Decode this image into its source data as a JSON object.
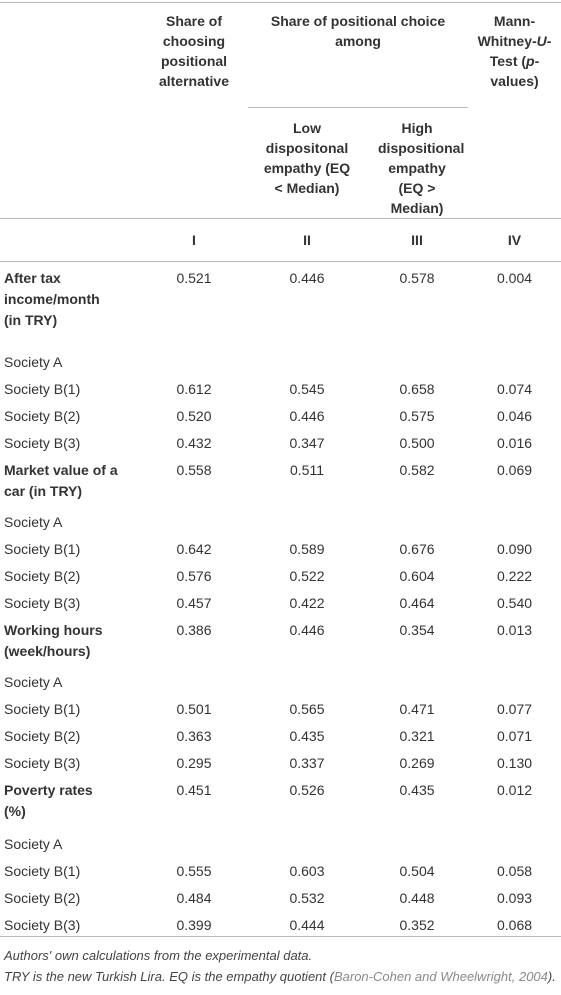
{
  "table": {
    "header": {
      "col1": "Share of choosing positional alternative",
      "group": "Share of positional choice among",
      "col2": "Low dispositonal empathy (EQ < Median)",
      "col3": "High dispositional empathy (EQ > Median)",
      "col4": [
        "Mann-Whitney-",
        "U",
        "-Test (",
        "p",
        "-values)"
      ]
    },
    "numerals": [
      "I",
      "II",
      "III",
      "IV"
    ],
    "groups": [
      {
        "label": "After tax income/month (in TRY)",
        "values": [
          "0.521",
          "0.446",
          "0.578",
          "0.004"
        ],
        "rows": [
          {
            "label": "Society A"
          },
          {
            "label": "Society B(1)",
            "values": [
              "0.612",
              "0.545",
              "0.658",
              "0.074"
            ]
          },
          {
            "label": "Society B(2)",
            "values": [
              "0.520",
              "0.446",
              "0.575",
              "0.046"
            ]
          },
          {
            "label": "Society B(3)",
            "values": [
              "0.432",
              "0.347",
              "0.500",
              "0.016"
            ]
          }
        ]
      },
      {
        "label": "Market value of a car (in TRY)",
        "values": [
          "0.558",
          "0.511",
          "0.582",
          "0.069"
        ],
        "rows": [
          {
            "label": "Society A"
          },
          {
            "label": "Society B(1)",
            "values": [
              "0.642",
              "0.589",
              "0.676",
              "0.090"
            ]
          },
          {
            "label": "Society B(2)",
            "values": [
              "0.576",
              "0.522",
              "0.604",
              "0.222"
            ]
          },
          {
            "label": "Society B(3)",
            "values": [
              "0.457",
              "0.422",
              "0.464",
              "0.540"
            ]
          }
        ]
      },
      {
        "label": "Working hours (week/hours)",
        "values": [
          "0.386",
          "0.446",
          "0.354",
          "0.013"
        ],
        "rows": [
          {
            "label": "Society A"
          },
          {
            "label": "Society B(1)",
            "values": [
              "0.501",
              "0.565",
              "0.471",
              "0.077"
            ]
          },
          {
            "label": "Society B(2)",
            "values": [
              "0.363",
              "0.435",
              "0.321",
              "0.071"
            ]
          },
          {
            "label": "Society B(3)",
            "values": [
              "0.295",
              "0.337",
              "0.269",
              "0.130"
            ]
          }
        ]
      },
      {
        "label": "Poverty rates (%)",
        "values": [
          "0.451",
          "0.526",
          "0.435",
          "0.012"
        ],
        "rows": [
          {
            "label": "Society A"
          },
          {
            "label": "Society B(1)",
            "values": [
              "0.555",
              "0.603",
              "0.504",
              "0.058"
            ]
          },
          {
            "label": "Society B(2)",
            "values": [
              "0.484",
              "0.532",
              "0.448",
              "0.093"
            ]
          },
          {
            "label": "Society B(3)",
            "values": [
              "0.399",
              "0.444",
              "0.352",
              "0.068"
            ]
          }
        ]
      }
    ]
  },
  "notes": [
    "Authors' own calculations from the experimental data.",
    [
      "TRY is the new Turkish Lira. EQ is the empathy quotient (",
      "Baron-Cohen and Wheelwright, 2004",
      ")."
    ]
  ]
}
